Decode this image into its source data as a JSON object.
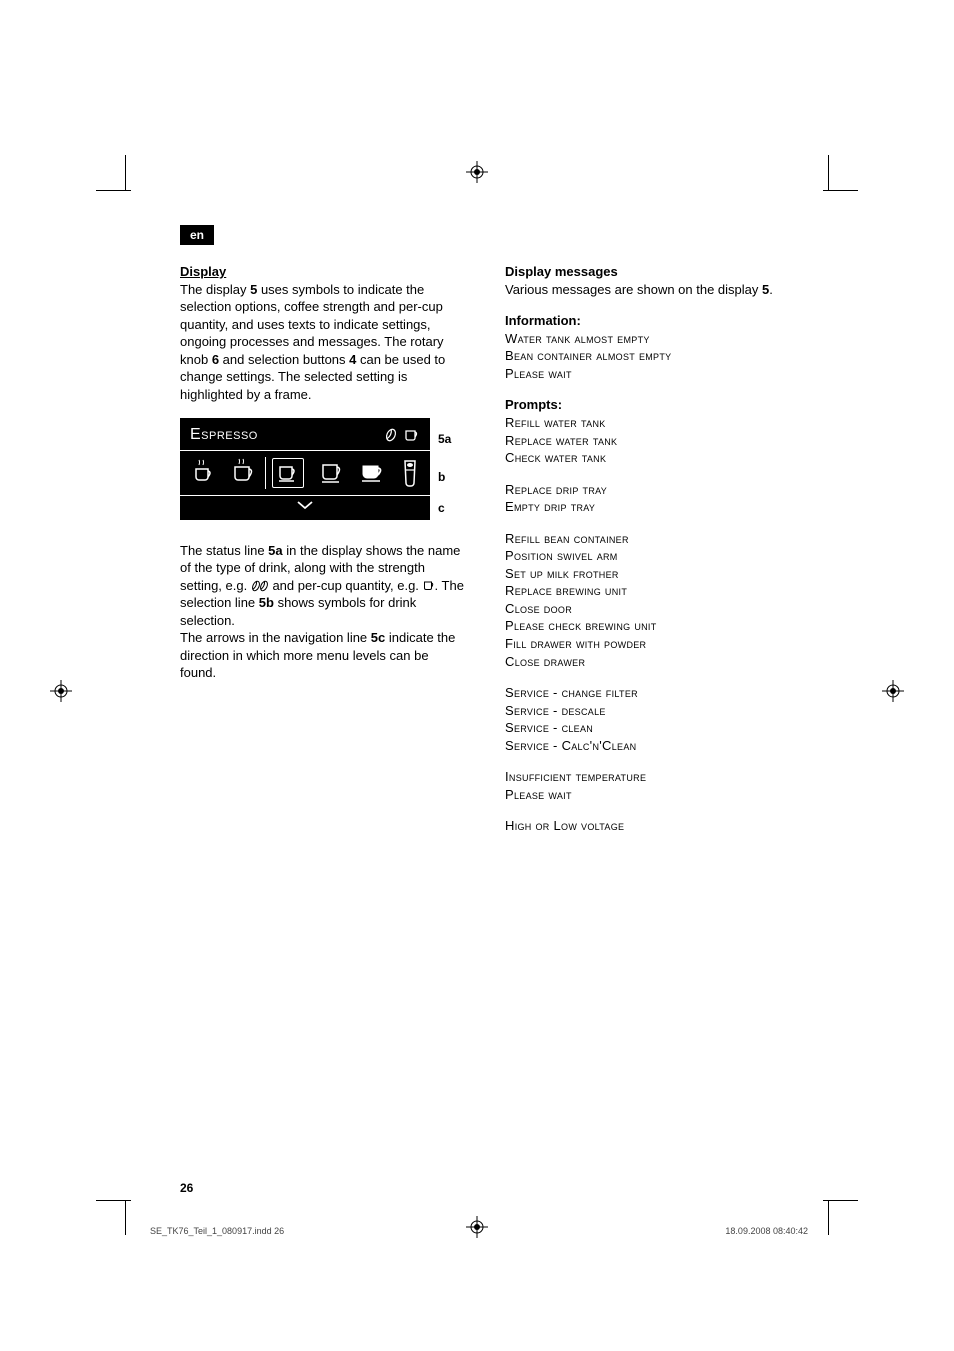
{
  "lang_tab": "en",
  "left": {
    "heading": "Display",
    "para1_parts": [
      "The display ",
      "5",
      " uses symbols to indicate the selection options, coffee strength and per-cup quantity, and uses texts to indicate settings, ongoing processes and messages. The rotary knob ",
      "6",
      " and selection buttons ",
      "4",
      " can be used to change settings. The selected setting is highlighted by a frame."
    ],
    "display": {
      "title": "Espresso",
      "label_a": "5a",
      "label_b": "b",
      "label_c": "c"
    },
    "para2_parts": [
      "The status line ",
      "5a",
      " in the display shows the name of the type of drink, along with the strength setting, e.g. ",
      "ICON_BEANS",
      " and per-cup quantity, e.g. ",
      "ICON_CUP",
      ". The selection line ",
      "5b",
      " shows symbols for drink selection.",
      "BR",
      "The arrows in the navigation line ",
      "5c",
      " indicate the direction in which more menu levels can be found."
    ]
  },
  "right": {
    "heading1": "Display messages",
    "intro_parts": [
      "Various messages are shown on the display ",
      "5",
      "."
    ],
    "info_heading": "Information",
    "info_lines": [
      "Water tank almost empty",
      "Bean container almost empty",
      "Please wait"
    ],
    "prompts_heading": "Prompts:",
    "prompt_blocks": [
      [
        "Refill water tank",
        "Replace water tank",
        "Check water tank"
      ],
      [
        "Replace drip tray",
        "Empty drip tray"
      ],
      [
        "Refill bean container",
        "Position swivel arm",
        "Set up milk frother",
        "Replace brewing unit",
        "Close door",
        "Please check brewing unit",
        "Fill drawer with powder",
        "Close drawer"
      ],
      [
        "Service - change filter",
        "Service - descale",
        "Service - clean",
        "Service - Calc'n'Clean"
      ],
      [
        "Insufficient temperature",
        "Please wait"
      ],
      [
        "High or Low voltage"
      ]
    ]
  },
  "page_number": "26",
  "footer_left": "SE_TK76_Teil_1_080917.indd   26",
  "footer_right": "18.09.2008   08:40:42"
}
